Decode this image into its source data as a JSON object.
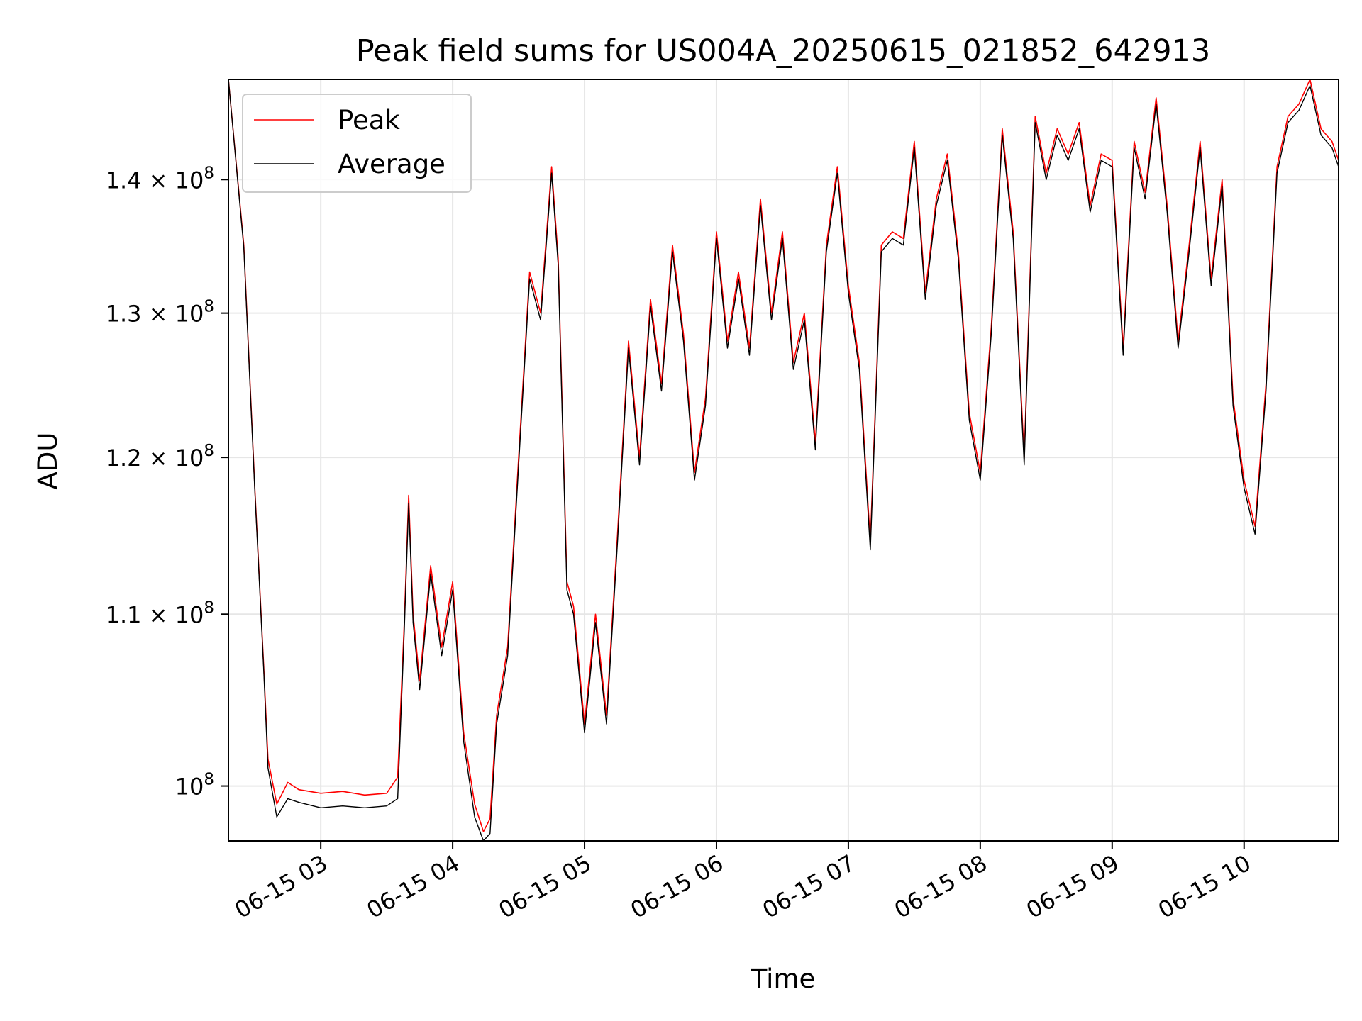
{
  "chart_data": {
    "type": "line",
    "title": "Peak field sums for US004A_20250615_021852_642913",
    "xlabel": "Time",
    "ylabel": "ADU",
    "yscale": "log",
    "xlim": [
      "06-15 02:18",
      "06-15 10:43"
    ],
    "ylim": [
      97000000,
      148000000
    ],
    "x_ticks": [
      "06-15 03",
      "06-15 04",
      "06-15 05",
      "06-15 06",
      "06-15 07",
      "06-15 08",
      "06-15 09",
      "06-15 10"
    ],
    "y_ticks": [
      {
        "value": 100000000,
        "mantissa": "",
        "base": "10",
        "exp": "8"
      },
      {
        "value": 110000000,
        "mantissa": "1.1",
        "base": "10",
        "exp": "8"
      },
      {
        "value": 120000000,
        "mantissa": "1.2",
        "base": "10",
        "exp": "8"
      },
      {
        "value": 130000000,
        "mantissa": "1.3",
        "base": "10",
        "exp": "8"
      },
      {
        "value": 140000000,
        "mantissa": "1.4",
        "base": "10",
        "exp": "8"
      }
    ],
    "grid": true,
    "legend": "upper-left",
    "colors": {
      "Peak": "#ff0000",
      "Average": "#000000"
    },
    "x": [
      "02:18",
      "02:25",
      "02:30",
      "02:34",
      "02:36",
      "02:40",
      "02:45",
      "02:50",
      "03:00",
      "03:10",
      "03:20",
      "03:30",
      "03:35",
      "03:38",
      "03:40",
      "03:42",
      "03:45",
      "03:50",
      "03:55",
      "04:00",
      "04:05",
      "04:10",
      "04:14",
      "04:17",
      "04:20",
      "04:25",
      "04:30",
      "04:35",
      "04:40",
      "04:45",
      "04:48",
      "04:52",
      "04:55",
      "05:00",
      "05:05",
      "05:10",
      "05:15",
      "05:20",
      "05:25",
      "05:30",
      "05:35",
      "05:40",
      "05:45",
      "05:50",
      "05:55",
      "06:00",
      "06:05",
      "06:10",
      "06:15",
      "06:20",
      "06:25",
      "06:30",
      "06:35",
      "06:40",
      "06:45",
      "06:50",
      "06:55",
      "07:00",
      "07:05",
      "07:10",
      "07:15",
      "07:20",
      "07:25",
      "07:30",
      "07:35",
      "07:40",
      "07:45",
      "07:50",
      "07:55",
      "08:00",
      "08:05",
      "08:10",
      "08:15",
      "08:20",
      "08:25",
      "08:30",
      "08:35",
      "08:40",
      "08:45",
      "08:50",
      "08:55",
      "09:00",
      "09:05",
      "09:10",
      "09:15",
      "09:20",
      "09:25",
      "09:30",
      "09:35",
      "09:40",
      "09:45",
      "09:50",
      "09:55",
      "10:00",
      "10:05",
      "10:10",
      "10:15",
      "10:20",
      "10:25",
      "10:30",
      "10:35",
      "10:40",
      "10:43"
    ],
    "series": [
      {
        "name": "Peak",
        "values": [
          148000000,
          135000000,
          118000000,
          107000000,
          101500000,
          99000000,
          100200000,
          99800000,
          99600000,
          99700000,
          99500000,
          99600000,
          100500000,
          109500000,
          117500000,
          110000000,
          106000000,
          113000000,
          108000000,
          112000000,
          103000000,
          99000000,
          97500000,
          98200000,
          104000000,
          108000000,
          120000000,
          133000000,
          130000000,
          141000000,
          134000000,
          112000000,
          110500000,
          103500000,
          110000000,
          104000000,
          115000000,
          128000000,
          120000000,
          131000000,
          125000000,
          135000000,
          128500000,
          119000000,
          124000000,
          136000000,
          128000000,
          133000000,
          127500000,
          138500000,
          130000000,
          136000000,
          126500000,
          130000000,
          121000000,
          135000000,
          141000000,
          132000000,
          126500000,
          114500000,
          135000000,
          136000000,
          135500000,
          143000000,
          131500000,
          138500000,
          142000000,
          134500000,
          123000000,
          119000000,
          129000000,
          144000000,
          136000000,
          120000000,
          145000000,
          140500000,
          144000000,
          142000000,
          144500000,
          138000000,
          142000000,
          141500000,
          127500000,
          143000000,
          139000000,
          146500000,
          138000000,
          128000000,
          135000000,
          143000000,
          132500000,
          140000000,
          124000000,
          118500000,
          115500000,
          125000000,
          141000000,
          145000000,
          146000000,
          148000000,
          144000000,
          143000000,
          141500000
        ]
      },
      {
        "name": "Average",
        "values": [
          148000000,
          134800000,
          117800000,
          106800000,
          101000000,
          98300000,
          99300000,
          99100000,
          98800000,
          98900000,
          98800000,
          98900000,
          99300000,
          109000000,
          117000000,
          109500000,
          105500000,
          112500000,
          107500000,
          111500000,
          102500000,
          98300000,
          97000000,
          97400000,
          103500000,
          107500000,
          119500000,
          132500000,
          129500000,
          140500000,
          133500000,
          111500000,
          110000000,
          103000000,
          109500000,
          103500000,
          114500000,
          127500000,
          119500000,
          130500000,
          124500000,
          134500000,
          128000000,
          118500000,
          123500000,
          135500000,
          127500000,
          132500000,
          127000000,
          138000000,
          129500000,
          135500000,
          126000000,
          129500000,
          120500000,
          134500000,
          140500000,
          131500000,
          126000000,
          114000000,
          134500000,
          135500000,
          135000000,
          142500000,
          131000000,
          138000000,
          141500000,
          134000000,
          122500000,
          118500000,
          128500000,
          143500000,
          135500000,
          119500000,
          144500000,
          140000000,
          143500000,
          141500000,
          144000000,
          137500000,
          141500000,
          141000000,
          127000000,
          142500000,
          138500000,
          146000000,
          137500000,
          127500000,
          134500000,
          142500000,
          132000000,
          139500000,
          123500000,
          118000000,
          115000000,
          124500000,
          140500000,
          144500000,
          145500000,
          147500000,
          143500000,
          142500000,
          141000000
        ]
      }
    ]
  }
}
